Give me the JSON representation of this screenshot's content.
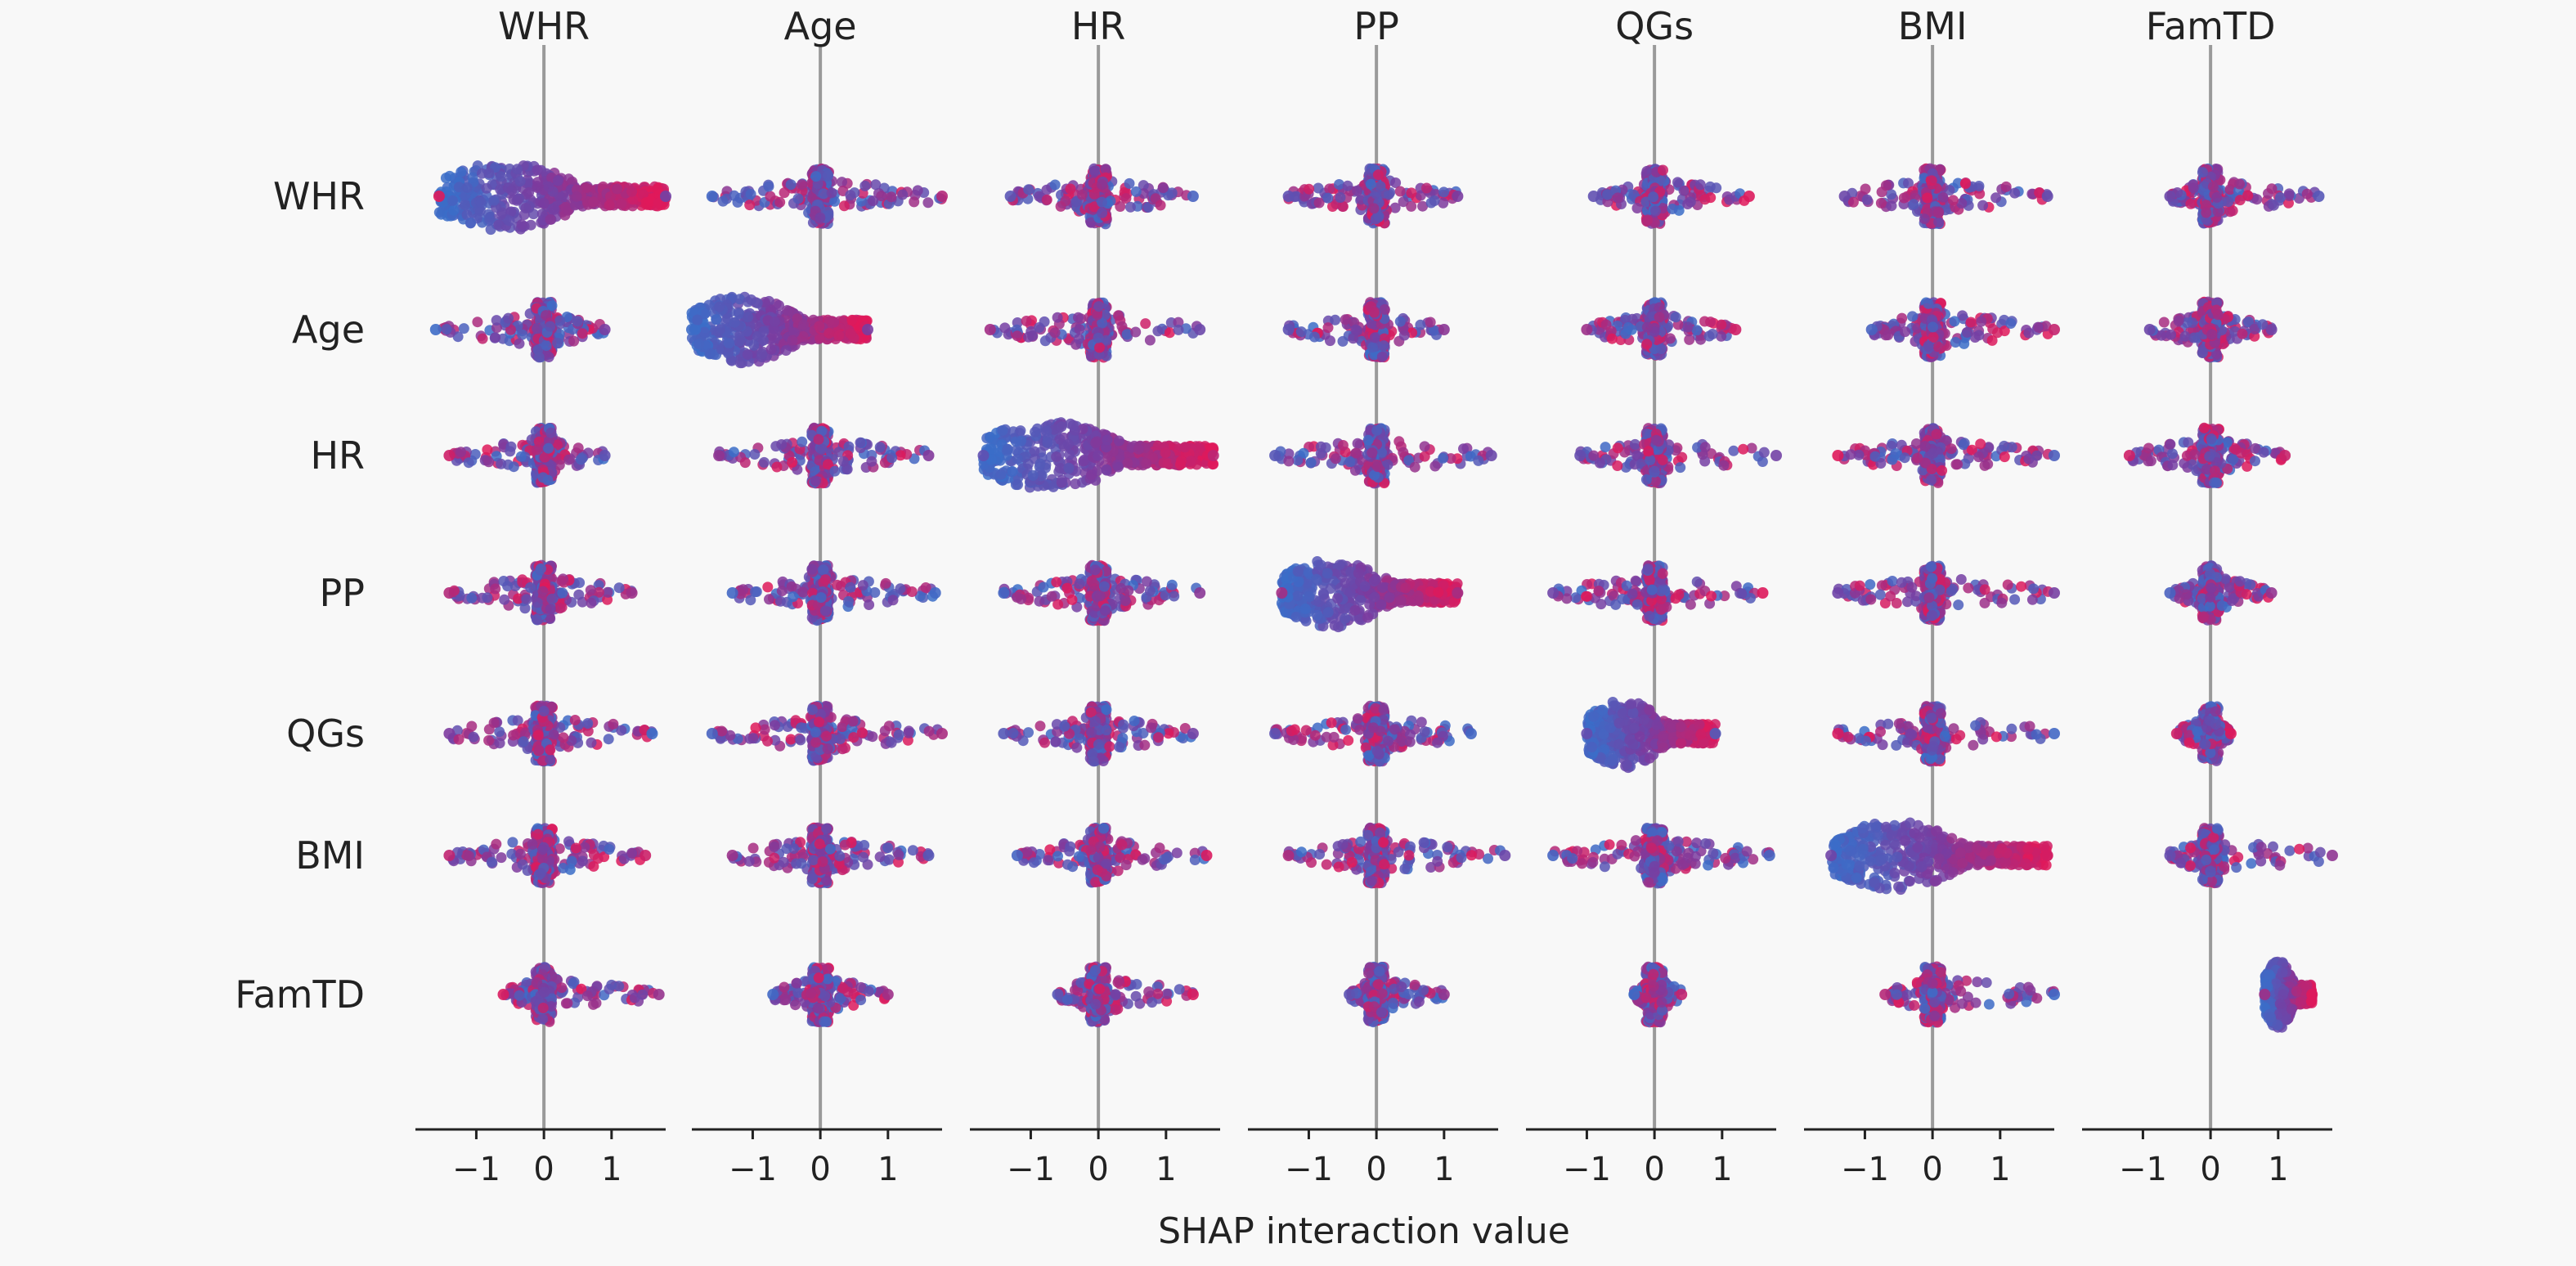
{
  "chart_data": {
    "type": "scatter",
    "subtype": "shap-interaction-beeswarm-matrix",
    "xlabel": "SHAP interaction value",
    "features": [
      "WHR",
      "Age",
      "HR",
      "PP",
      "QGs",
      "BMI",
      "FamTD"
    ],
    "column_titles": [
      "WHR",
      "Age",
      "HR",
      "PP",
      "QGs",
      "BMI",
      "FamTD"
    ],
    "row_labels": [
      "WHR",
      "Age",
      "HR",
      "PP",
      "QGs",
      "BMI",
      "FamTD"
    ],
    "xlim": [
      -1.9,
      1.8
    ],
    "xticks": [
      -1,
      0,
      1
    ],
    "xtick_labels": [
      "−1",
      "0",
      "1"
    ],
    "zero_line": true,
    "color_scale": {
      "low": "#3b6dc8",
      "mid": "#7a3ca0",
      "high": "#e0195a"
    },
    "cells": {
      "WHR": {
        "WHR": [
          -1.55,
          1.8
        ],
        "Age": [
          -1.6,
          1.8
        ],
        "HR": [
          -1.3,
          1.4
        ],
        "PP": [
          -1.3,
          1.2
        ],
        "QGs": [
          -0.9,
          1.4
        ],
        "BMI": [
          -1.3,
          1.7
        ],
        "FamTD": [
          -0.6,
          1.6
        ]
      },
      "Age": {
        "WHR": [
          -1.6,
          0.9
        ],
        "Age": [
          -1.9,
          0.7
        ],
        "HR": [
          -1.6,
          1.5
        ],
        "PP": [
          -1.3,
          1.0
        ],
        "QGs": [
          -1.0,
          1.2
        ],
        "BMI": [
          -0.9,
          1.8
        ],
        "FamTD": [
          -0.9,
          0.9
        ]
      },
      "HR": {
        "WHR": [
          -1.4,
          0.9
        ],
        "Age": [
          -1.5,
          1.6
        ],
        "HR": [
          -1.7,
          1.7
        ],
        "PP": [
          -1.5,
          1.7
        ],
        "QGs": [
          -1.1,
          1.8
        ],
        "BMI": [
          -1.4,
          1.8
        ],
        "FamTD": [
          -1.2,
          1.1
        ]
      },
      "PP": {
        "WHR": [
          -1.4,
          1.3
        ],
        "Age": [
          -1.3,
          1.7
        ],
        "HR": [
          -1.4,
          1.5
        ],
        "PP": [
          -1.4,
          1.2
        ],
        "QGs": [
          -1.5,
          1.6
        ],
        "BMI": [
          -1.4,
          1.8
        ],
        "FamTD": [
          -0.6,
          0.9
        ]
      },
      "QGs": {
        "WHR": [
          -1.4,
          1.6
        ],
        "Age": [
          -1.6,
          1.8
        ],
        "HR": [
          -1.4,
          1.4
        ],
        "PP": [
          -1.5,
          1.4
        ],
        "QGs": [
          -1.0,
          0.9
        ],
        "BMI": [
          -1.4,
          1.8
        ],
        "FamTD": [
          -0.5,
          0.3
        ]
      },
      "BMI": {
        "WHR": [
          -1.4,
          1.5
        ],
        "Age": [
          -1.3,
          1.6
        ],
        "HR": [
          -1.2,
          1.6
        ],
        "PP": [
          -1.3,
          1.9
        ],
        "QGs": [
          -1.5,
          1.7
        ],
        "BMI": [
          -1.5,
          1.7
        ],
        "FamTD": [
          -0.6,
          1.8
        ]
      },
      "FamTD": {
        "WHR": [
          -0.6,
          1.7
        ],
        "Age": [
          -0.7,
          1.0
        ],
        "HR": [
          -0.6,
          1.4
        ],
        "PP": [
          -0.4,
          1.0
        ],
        "QGs": [
          -0.3,
          0.4
        ],
        "BMI": [
          -0.7,
          1.8
        ],
        "FamTD": [
          0.8,
          1.5
        ]
      }
    }
  }
}
